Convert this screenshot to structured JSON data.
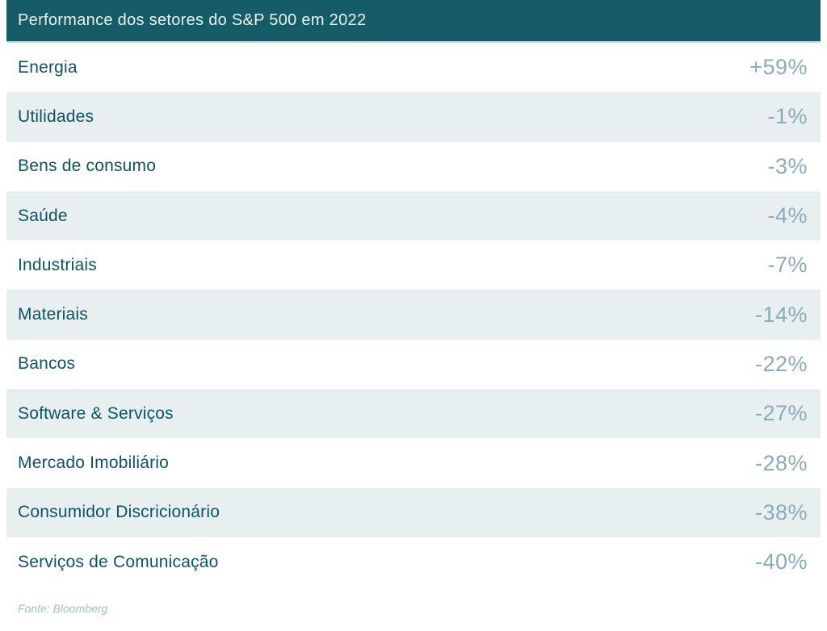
{
  "header": {
    "title": "Performance dos setores do S&P 500 em 2022"
  },
  "rows": [
    {
      "label": "Energia",
      "value": "+59%"
    },
    {
      "label": "Utilidades",
      "value": "-1%"
    },
    {
      "label": "Bens de consumo",
      "value": "-3%"
    },
    {
      "label": "Saúde",
      "value": "-4%"
    },
    {
      "label": "Industriais",
      "value": "-7%"
    },
    {
      "label": "Materiais",
      "value": "-14%"
    },
    {
      "label": "Bancos",
      "value": "-22%"
    },
    {
      "label": "Software & Serviços",
      "value": "-27%"
    },
    {
      "label": "Mercado Imobiliário",
      "value": "-28%"
    },
    {
      "label": "Consumidor Discricionário",
      "value": "-38%"
    },
    {
      "label": "Serviços de Comunicação",
      "value": "-40%"
    }
  ],
  "footer": {
    "source": "Fonte: Bloomberg"
  },
  "chart_data": {
    "type": "table",
    "title": "Performance dos setores do S&P 500 em 2022",
    "categories": [
      "Energia",
      "Utilidades",
      "Bens de consumo",
      "Saúde",
      "Industriais",
      "Materiais",
      "Bancos",
      "Software & Serviços",
      "Mercado Imobiliário",
      "Consumidor Discricionário",
      "Serviços de Comunicação"
    ],
    "values": [
      59,
      -1,
      -3,
      -4,
      -7,
      -14,
      -22,
      -27,
      -28,
      -38,
      -40
    ],
    "value_labels": [
      "+59%",
      "-1%",
      "-3%",
      "-4%",
      "-7%",
      "-14%",
      "-22%",
      "-27%",
      "-28%",
      "-38%",
      "-40%"
    ],
    "unit": "%",
    "source": "Fonte: Bloomberg",
    "layout": "zebra-striped table, labels left, values right-aligned"
  },
  "colors": {
    "header_bg": "#155c66",
    "header_text": "#e9f1f2",
    "label": "#0d5362",
    "value": "#8aacb8",
    "alt_row_bg": "#e8eff1",
    "footer_text": "#a4bdc9",
    "page_bg": "#ffffff"
  }
}
